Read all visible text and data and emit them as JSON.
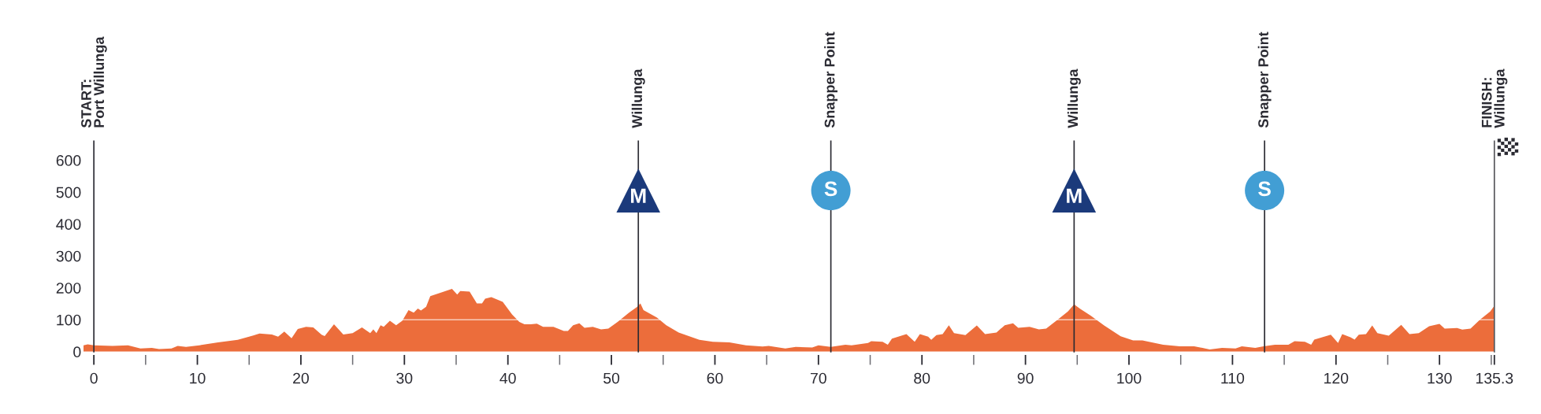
{
  "chart_data": {
    "type": "area",
    "xlim": [
      -1,
      136
    ],
    "ylim": [
      0,
      660
    ],
    "xticks": [
      0,
      {
        "value": 5,
        "label": null
      },
      10,
      {
        "value": 15,
        "label": null
      },
      20,
      {
        "value": 25,
        "label": null
      },
      30,
      {
        "value": 35,
        "label": null
      },
      40,
      {
        "value": 45,
        "label": null
      },
      50,
      {
        "value": 55,
        "label": null
      },
      60,
      {
        "value": 65,
        "label": null
      },
      70,
      {
        "value": 75,
        "label": null
      },
      80,
      {
        "value": 85,
        "label": null
      },
      90,
      {
        "value": 95,
        "label": null
      },
      100,
      {
        "value": 105,
        "label": null
      },
      110,
      {
        "value": 115,
        "label": null
      },
      120,
      {
        "value": 125,
        "label": null
      },
      130,
      {
        "value": 135,
        "label": null
      },
      135.3
    ],
    "yticks": [
      0,
      100,
      200,
      300,
      400,
      500,
      600
    ],
    "series": [
      {
        "color": "#ec6d3b",
        "x": [
          -1.0,
          -0.6,
          0,
          1.8,
          3.3,
          4.5,
          5.6,
          6.3,
          7.5,
          8.1,
          8.9,
          10.2,
          12.0,
          13.9,
          15.4,
          16.0,
          17.2,
          17.8,
          18.4,
          19.1,
          19.7,
          20.5,
          21.2,
          22.0,
          22.3,
          23.2,
          24.1,
          25.0,
          25.9,
          26.7,
          27.0,
          27.3,
          27.7,
          28.0,
          28.6,
          29.2,
          29.8,
          30.4,
          30.9,
          31.3,
          31.6,
          32.1,
          32.5,
          33.7,
          34.6,
          35.1,
          35.4,
          36.3,
          37.0,
          37.5,
          37.8,
          38.4,
          39.5,
          40.4,
          41.1,
          41.6,
          42.2,
          42.8,
          43.4,
          44.4,
          45.4,
          45.8,
          46.3,
          46.9,
          47.4,
          48.2,
          49.0,
          49.7,
          50.6,
          51.7,
          52.5,
          52.8,
          53.1,
          54.4,
          55.3,
          56.5,
          57.2,
          58.5,
          59.8,
          61.4,
          63.0,
          64.6,
          65.2,
          66.8,
          67.8,
          69.4,
          70.0,
          71.2,
          72.6,
          73.2,
          74.8,
          75.1,
          76.2,
          76.7,
          77.1,
          78.5,
          79.3,
          79.8,
          80.6,
          80.9,
          81.4,
          82.0,
          82.6,
          83.1,
          84.2,
          85.3,
          86.1,
          87.2,
          88.0,
          88.8,
          89.3,
          90.4,
          91.3,
          92.0,
          93.1,
          94.1,
          94.7,
          95.3,
          96.3,
          97.6,
          99.2,
          100.4,
          101.3,
          103.3,
          104.9,
          106.3,
          107.8,
          109.0,
          110.3,
          110.9,
          112.2,
          113.0,
          114.1,
          115.4,
          116.0,
          117.0,
          117.6,
          117.9,
          119.5,
          120.2,
          120.6,
          121.4,
          121.8,
          122.2,
          122.9,
          123.5,
          124.0,
          125.1,
          126.3,
          127.1,
          128.0,
          129.0,
          130.0,
          130.5,
          131.7,
          132.2,
          133.0,
          133.9,
          134.9,
          135.3
        ],
        "values": [
          20,
          23,
          20,
          18,
          20,
          10,
          12,
          8,
          10,
          18,
          15,
          20,
          29,
          37,
          51,
          57,
          54,
          47,
          63,
          42,
          71,
          78,
          76,
          53,
          49,
          86,
          54,
          58,
          76,
          58,
          70,
          58,
          83,
          78,
          97,
          83,
          97,
          130,
          122,
          135,
          129,
          141,
          174,
          187,
          197,
          179,
          190,
          188,
          151,
          151,
          166,
          171,
          156,
          117,
          93,
          86,
          86,
          88,
          78,
          78,
          65,
          65,
          83,
          89,
          75,
          78,
          70,
          72,
          93,
          122,
          141,
          151,
          130,
          107,
          83,
          60,
          52,
          37,
          31,
          29,
          20,
          16,
          18,
          10,
          15,
          13,
          20,
          15,
          22,
          20,
          27,
          33,
          31,
          22,
          41,
          55,
          31,
          55,
          47,
          37,
          52,
          55,
          83,
          58,
          52,
          82,
          55,
          60,
          83,
          89,
          75,
          78,
          70,
          72,
          100,
          126,
          148,
          134,
          113,
          82,
          48,
          35,
          35,
          22,
          17,
          17,
          7,
          12,
          10,
          17,
          12,
          17,
          22,
          22,
          33,
          31,
          22,
          38,
          53,
          27,
          55,
          45,
          38,
          53,
          55,
          82,
          58,
          50,
          84,
          55,
          58,
          80,
          87,
          72,
          74,
          69,
          72,
          100,
          126,
          144
        ]
      },
      {
        "type": "scatter",
        "marker": "triangle",
        "color": "#1b3a7b",
        "x": [
          52.6,
          94.7
        ],
        "values": [
          505,
          505
        ]
      },
      {
        "type": "scatter",
        "marker": "circle",
        "color": "#429ed4",
        "x": [
          71.2,
          113.1
        ],
        "values": [
          505,
          505
        ]
      }
    ],
    "ref_lines": [
      {
        "axis": "x",
        "value": 0,
        "label": "START:\nPort Willunga"
      },
      {
        "axis": "x",
        "value": 52.6,
        "label": "Willunga"
      },
      {
        "axis": "x",
        "value": 71.2,
        "label": "Snapper Point"
      },
      {
        "axis": "x",
        "value": 94.7,
        "label": "Willunga"
      },
      {
        "axis": "x",
        "value": 113.1,
        "label": "Snapper Point"
      },
      {
        "axis": "x",
        "value": 135.3,
        "label": "FINISH:\nWillunga",
        "color": "#55555a"
      },
      {
        "axis": "y",
        "value": 100,
        "color": "#ffffff"
      }
    ],
    "annotations": [
      {
        "text": "M",
        "x": 52.6,
        "y": 483
      },
      {
        "text": "S",
        "x": 71.2,
        "y": 505
      },
      {
        "text": "M",
        "x": 94.7,
        "y": 483
      },
      {
        "text": "S",
        "x": 113.1,
        "y": 505
      }
    ]
  }
}
